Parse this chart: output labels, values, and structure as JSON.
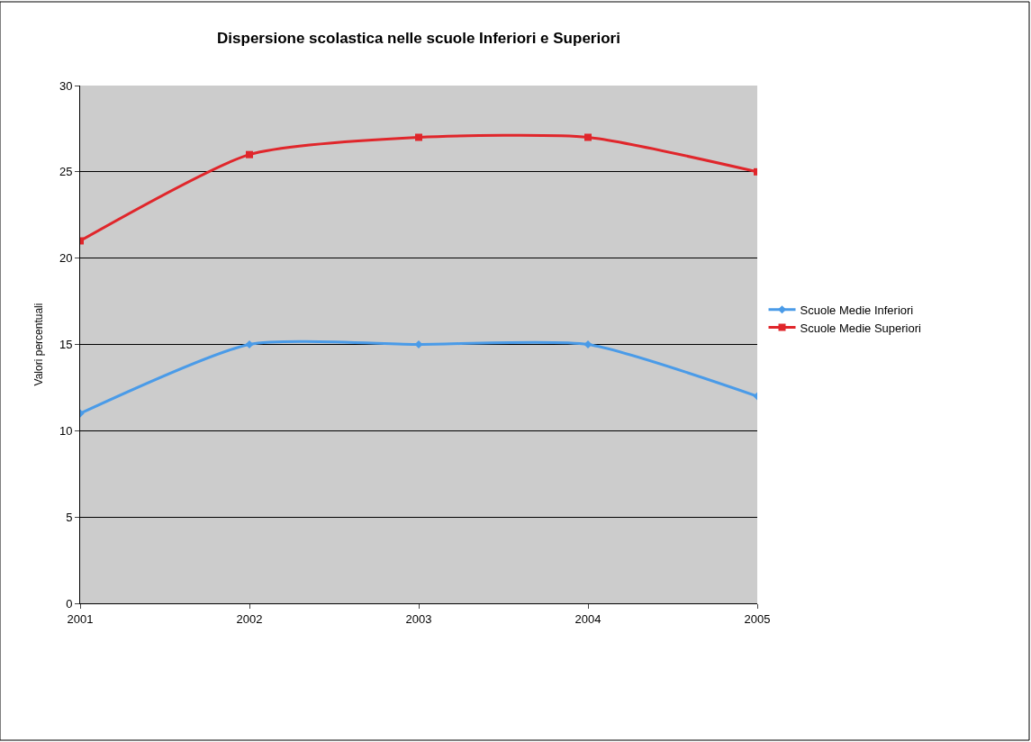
{
  "chart_data": {
    "type": "line",
    "title": "Dispersione scolastica nelle scuole Inferiori e Superiori",
    "ylabel": "Valori percentuali",
    "x": [
      2001,
      2002,
      2003,
      2004,
      2005
    ],
    "series": [
      {
        "name": "Scuole Medie Inferiori",
        "color": "#4a9be8",
        "marker": "diamond",
        "values": [
          11,
          15,
          15,
          15,
          12
        ]
      },
      {
        "name": "Scuole Medie Superiori",
        "color": "#e0262b",
        "marker": "square",
        "values": [
          21,
          26,
          27,
          27,
          25
        ]
      }
    ],
    "xlim": [
      2001,
      2005
    ],
    "xticks": [
      2001,
      2002,
      2003,
      2004,
      2005
    ],
    "ylim": [
      0,
      30
    ],
    "yticks": [
      0,
      5,
      10,
      15,
      20,
      25,
      30
    ],
    "grid": "y",
    "legend": "right",
    "line_style": "solid"
  }
}
